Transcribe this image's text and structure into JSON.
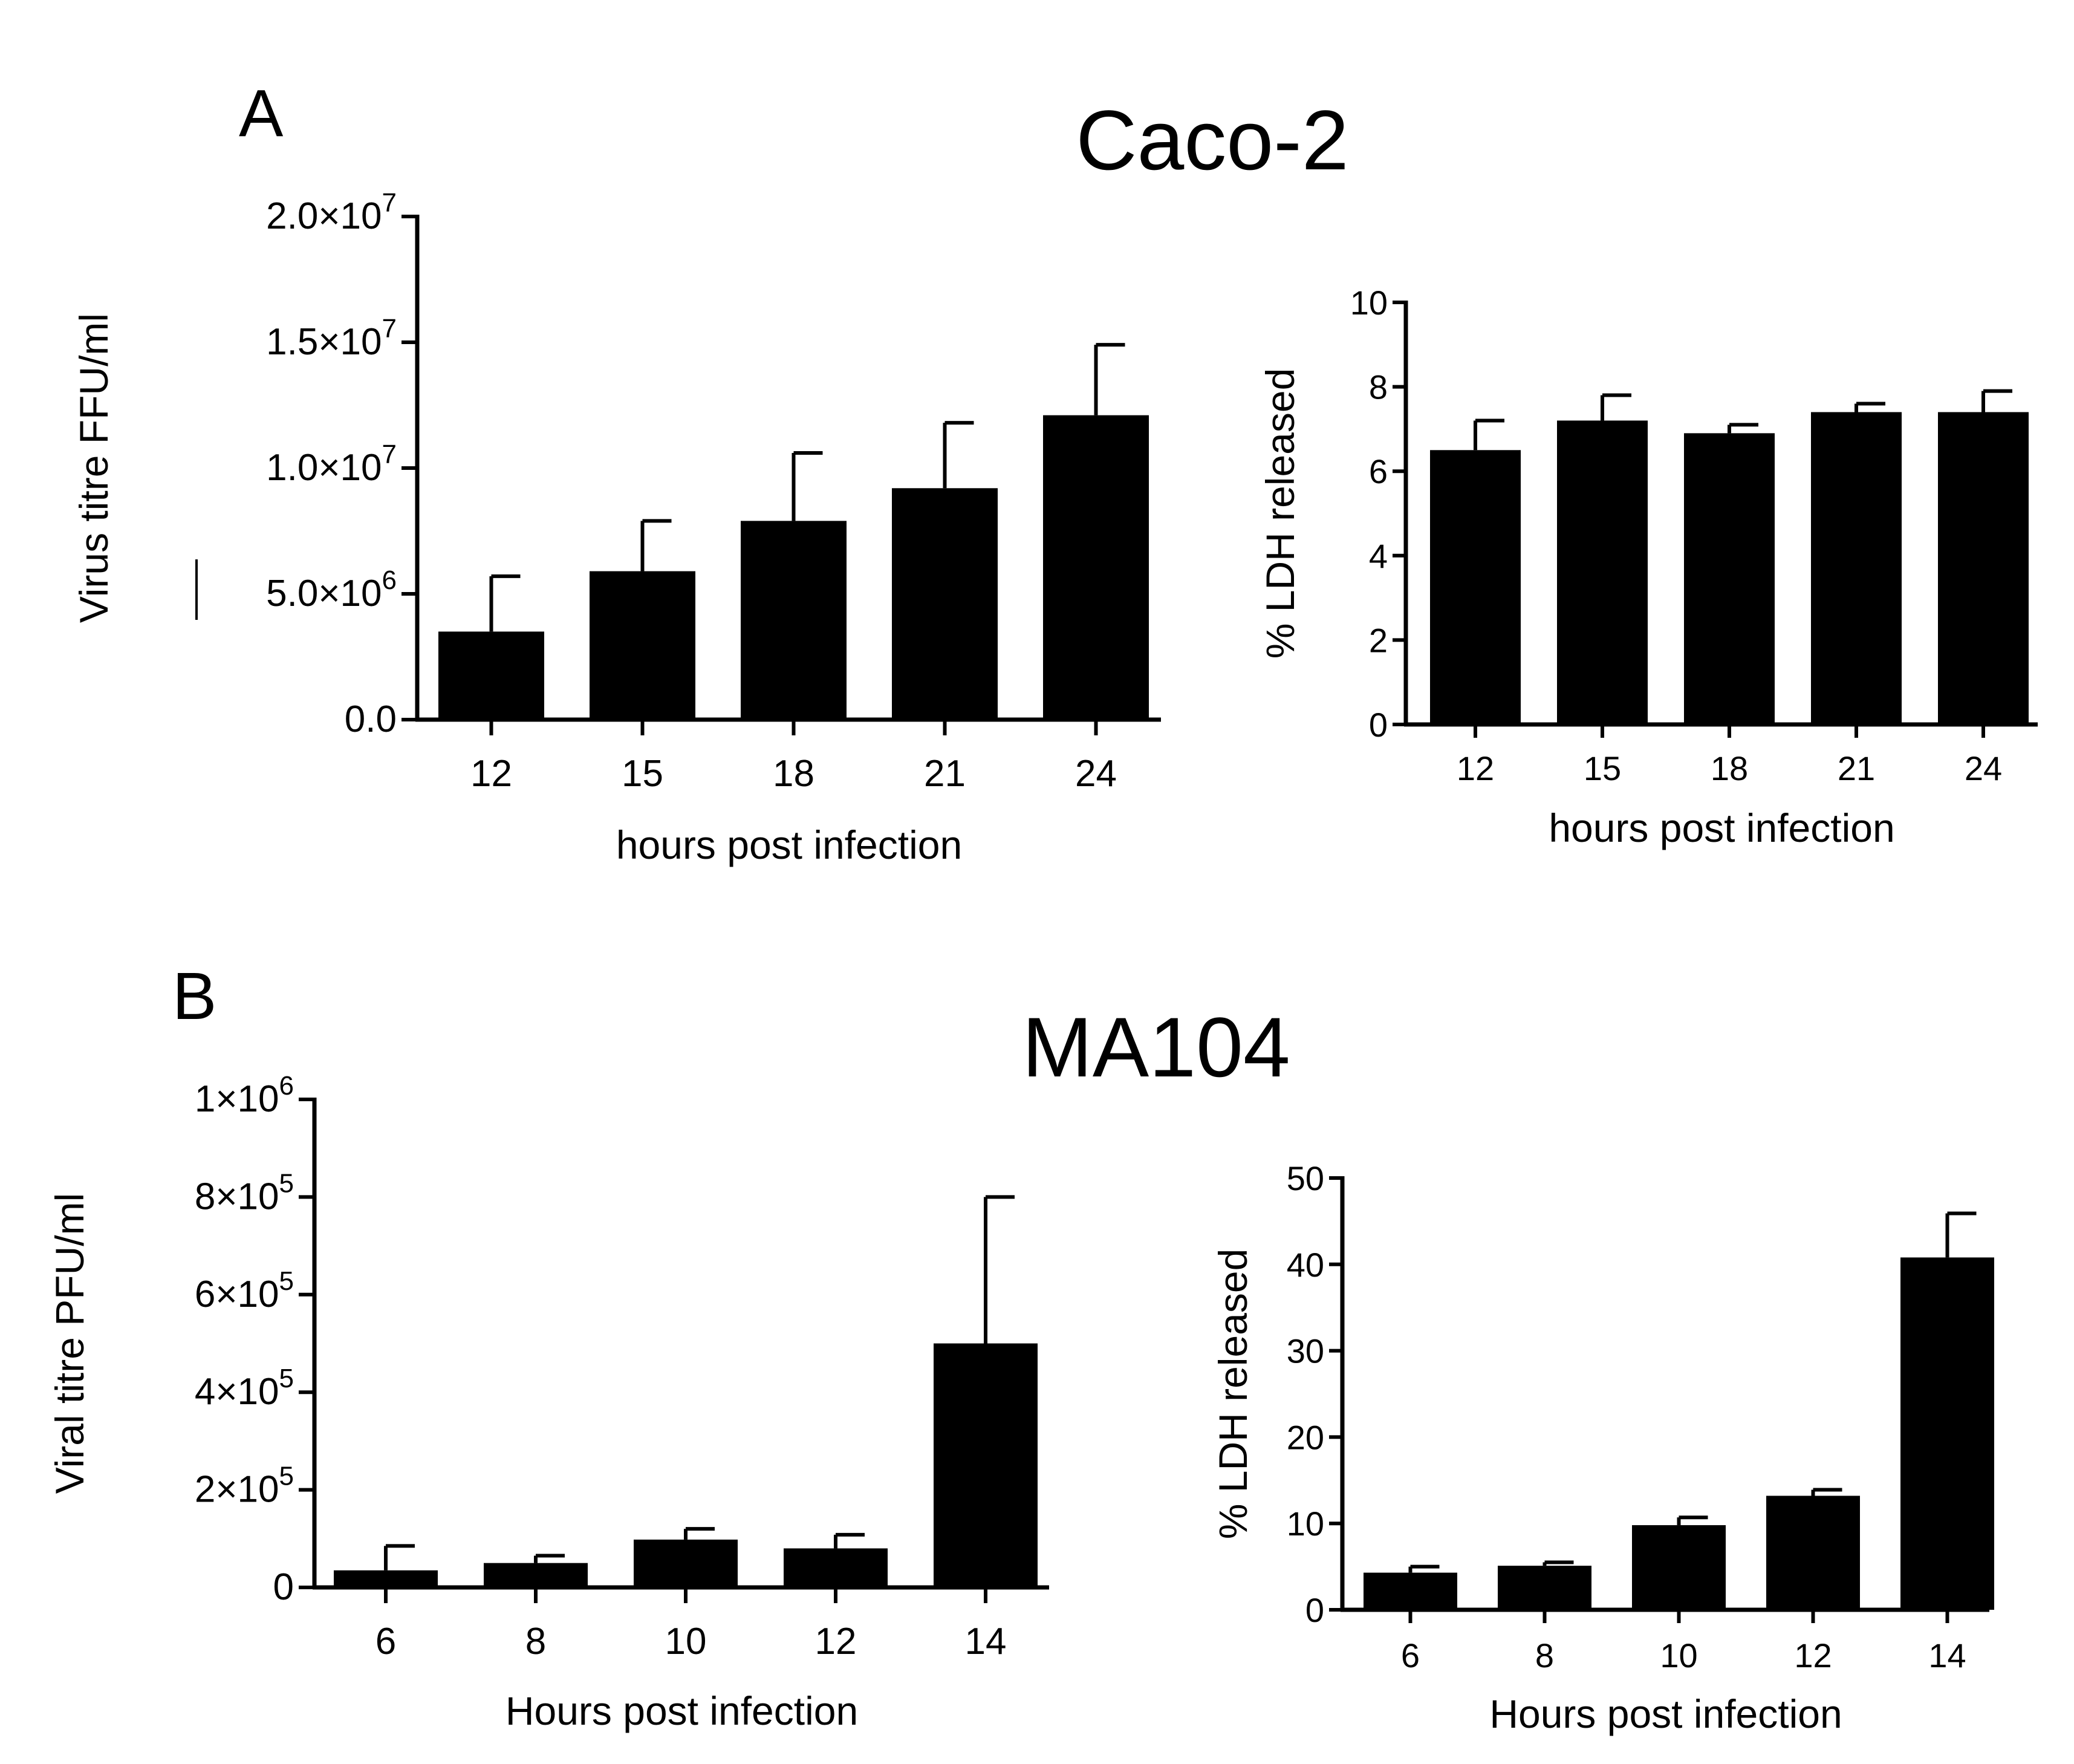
{
  "panels": [
    {
      "letter": "A",
      "title": "Caco-2"
    },
    {
      "letter": "B",
      "title": "MA104"
    }
  ],
  "chart_data": [
    {
      "id": "caco2-titre",
      "type": "bar",
      "panel": "A",
      "categories": [
        "12",
        "15",
        "18",
        "21",
        "24"
      ],
      "values": [
        3500000,
        5900000,
        7900000,
        9200000,
        12100000
      ],
      "errors": [
        2200000,
        2000000,
        2700000,
        2600000,
        2800000
      ],
      "ylim": [
        0,
        20000000
      ],
      "yticks": [
        {
          "value": 0,
          "mantissa": "0.0",
          "exp": ""
        },
        {
          "value": 5000000,
          "mantissa": "5.0×10",
          "exp": "6"
        },
        {
          "value": 10000000,
          "mantissa": "1.0×10",
          "exp": "7"
        },
        {
          "value": 15000000,
          "mantissa": "1.5×10",
          "exp": "7"
        },
        {
          "value": 20000000,
          "mantissa": "2.0×10",
          "exp": "7"
        }
      ],
      "xlabel": "hours post infection",
      "ylabel": "Virus titre FFU/ml",
      "color": "#000000"
    },
    {
      "id": "caco2-ldh",
      "type": "bar",
      "panel": "A",
      "categories": [
        "12",
        "15",
        "18",
        "21",
        "24"
      ],
      "values": [
        6.5,
        7.2,
        6.9,
        7.4,
        7.4
      ],
      "errors": [
        0.7,
        0.6,
        0.2,
        0.2,
        0.5
      ],
      "ylim": [
        0,
        10
      ],
      "yticks": [
        {
          "value": 0,
          "mantissa": "0",
          "exp": ""
        },
        {
          "value": 2,
          "mantissa": "2",
          "exp": ""
        },
        {
          "value": 4,
          "mantissa": "4",
          "exp": ""
        },
        {
          "value": 6,
          "mantissa": "6",
          "exp": ""
        },
        {
          "value": 8,
          "mantissa": "8",
          "exp": ""
        },
        {
          "value": 10,
          "mantissa": "10",
          "exp": ""
        }
      ],
      "xlabel": "hours post infection",
      "ylabel": "% LDH released",
      "color": "#000000"
    },
    {
      "id": "ma104-titre",
      "type": "bar",
      "panel": "B",
      "categories": [
        "6",
        "8",
        "10",
        "12",
        "14"
      ],
      "values": [
        35000,
        50000,
        98000,
        80000,
        500000
      ],
      "errors": [
        50000,
        15000,
        22000,
        28000,
        300000
      ],
      "ylim": [
        0,
        1000000
      ],
      "yticks": [
        {
          "value": 0,
          "mantissa": "0",
          "exp": ""
        },
        {
          "value": 200000,
          "mantissa": "2×10",
          "exp": "5"
        },
        {
          "value": 400000,
          "mantissa": "4×10",
          "exp": "5"
        },
        {
          "value": 600000,
          "mantissa": "6×10",
          "exp": "5"
        },
        {
          "value": 800000,
          "mantissa": "8×10",
          "exp": "5"
        },
        {
          "value": 1000000,
          "mantissa": "1×10",
          "exp": "6"
        }
      ],
      "xlabel": "Hours post infection",
      "ylabel": "Viral titre PFU/ml",
      "color": "#000000"
    },
    {
      "id": "ma104-ldh",
      "type": "bar",
      "panel": "B",
      "categories": [
        "6",
        "8",
        "10",
        "12",
        "14"
      ],
      "values": [
        4.3,
        5.1,
        9.8,
        13.2,
        40.8
      ],
      "errors": [
        0.7,
        0.4,
        0.9,
        0.7,
        5.1
      ],
      "ylim": [
        0,
        50
      ],
      "yticks": [
        {
          "value": 0,
          "mantissa": "0",
          "exp": ""
        },
        {
          "value": 10,
          "mantissa": "10",
          "exp": ""
        },
        {
          "value": 20,
          "mantissa": "20",
          "exp": ""
        },
        {
          "value": 30,
          "mantissa": "30",
          "exp": ""
        },
        {
          "value": 40,
          "mantissa": "40",
          "exp": ""
        },
        {
          "value": 50,
          "mantissa": "50",
          "exp": ""
        }
      ],
      "xlabel": "Hours post infection",
      "ylabel": "% LDH released",
      "color": "#000000"
    }
  ]
}
